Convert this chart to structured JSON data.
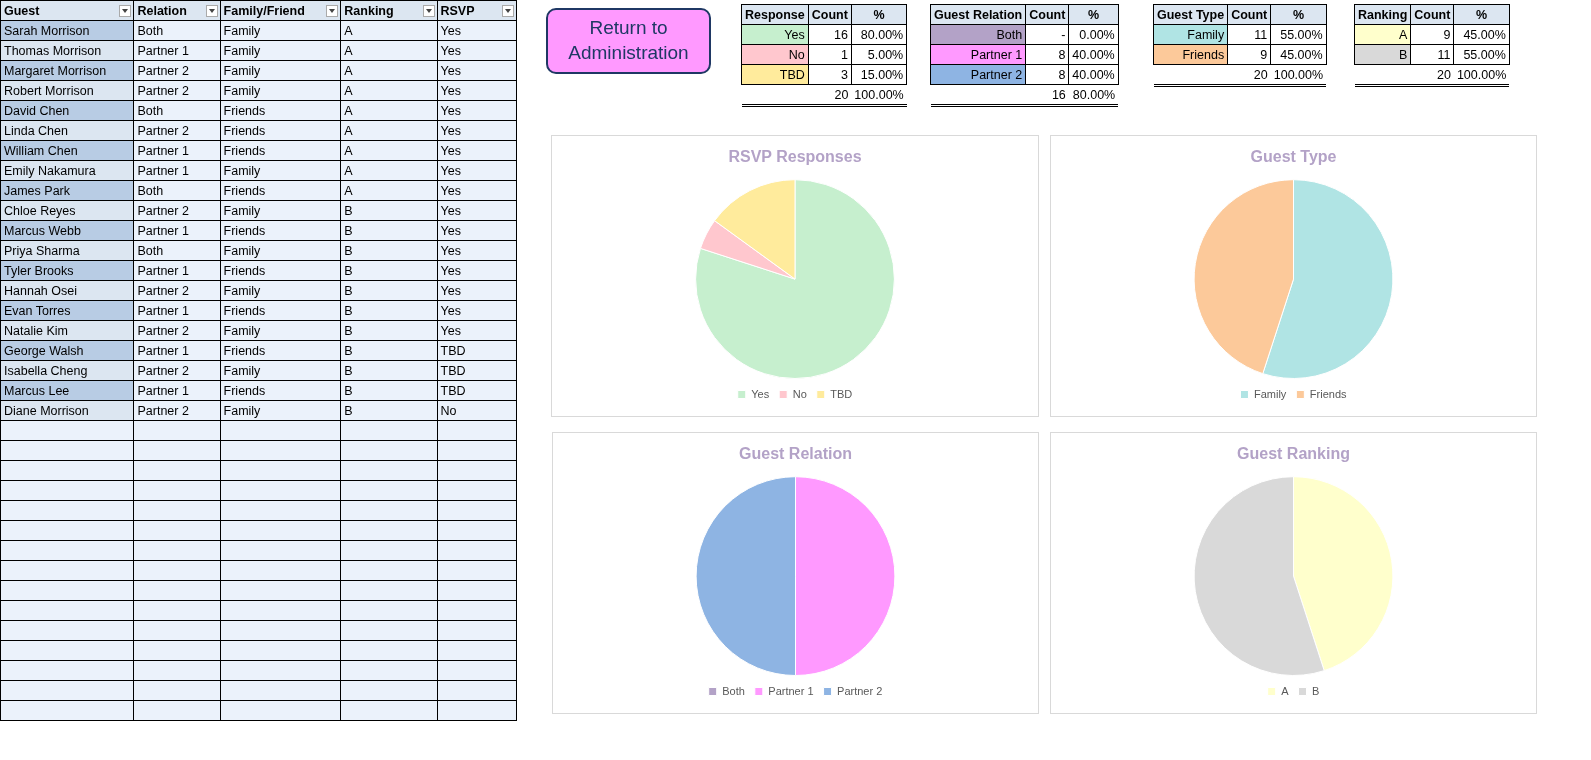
{
  "chart_data": [
    {
      "type": "other",
      "categories": [
        "Guest",
        "Relation",
        "Family/Friend",
        "Ranking",
        "RSVP"
      ],
      "cell_labels": [
        [
          "Sarah Morrison",
          "Both",
          "Family",
          "A",
          "Yes"
        ],
        [
          "Thomas Morrison",
          "Partner 1",
          "Family",
          "A",
          "Yes"
        ],
        [
          "Margaret Morrison",
          "Partner 2",
          "Family",
          "A",
          "Yes"
        ],
        [
          "Robert Morrison",
          "Partner 2",
          "Family",
          "A",
          "Yes"
        ],
        [
          "David Chen",
          "Both",
          "Friends",
          "A",
          "Yes"
        ],
        [
          "Linda Chen",
          "Partner 2",
          "Friends",
          "A",
          "Yes"
        ],
        [
          "William Chen",
          "Partner 1",
          "Friends",
          "A",
          "Yes"
        ],
        [
          "Emily Nakamura",
          "Partner 1",
          "Family",
          "A",
          "Yes"
        ],
        [
          "James Park",
          "Both",
          "Friends",
          "A",
          "Yes"
        ],
        [
          "Chloe Reyes",
          "Partner 2",
          "Family",
          "B",
          "Yes"
        ],
        [
          "Marcus Webb",
          "Partner 1",
          "Friends",
          "B",
          "Yes"
        ],
        [
          "Priya Sharma",
          "Both",
          "Family",
          "B",
          "Yes"
        ],
        [
          "Tyler Brooks",
          "Partner 1",
          "Friends",
          "B",
          "Yes"
        ],
        [
          "Hannah Osei",
          "Partner 2",
          "Family",
          "B",
          "Yes"
        ],
        [
          "Evan Torres",
          "Partner 1",
          "Friends",
          "B",
          "Yes"
        ],
        [
          "Natalie Kim",
          "Partner 2",
          "Family",
          "B",
          "Yes"
        ],
        [
          "George Walsh",
          "Partner 1",
          "Friends",
          "B",
          "TBD"
        ],
        [
          "Isabella Cheng",
          "Partner 2",
          "Family",
          "B",
          "TBD"
        ],
        [
          "Marcus Lee",
          "Partner 1",
          "Friends",
          "B",
          "TBD"
        ],
        [
          "Diane Morrison",
          "Partner 2",
          "Family",
          "B",
          "No"
        ]
      ]
    },
    {
      "type": "other",
      "annotations": [
        "Return to Administration"
      ]
    },
    {
      "type": "other",
      "categories": [
        "Response",
        "Count",
        "%"
      ],
      "cell_labels": [
        [
          "Yes",
          "16",
          "80.00%"
        ],
        [
          "No",
          "1",
          "5.00%"
        ],
        [
          "TBD",
          "3",
          "15.00%"
        ],
        [
          null,
          "20",
          "100.00%"
        ]
      ]
    },
    {
      "type": "other",
      "categories": [
        "Guest Relation",
        "Count",
        "%"
      ],
      "cell_labels": [
        [
          "Both",
          "-",
          "0.00%"
        ],
        [
          "Partner 1",
          "8",
          "40.00%"
        ],
        [
          "Partner 2",
          "8",
          "40.00%"
        ],
        [
          null,
          "16",
          "80.00%"
        ]
      ]
    },
    {
      "type": "other",
      "categories": [
        "Guest Type",
        "Count",
        "%"
      ],
      "cell_labels": [
        [
          "Family",
          "11",
          "55.00%"
        ],
        [
          "Friends",
          "9",
          "45.00%"
        ],
        [
          null,
          "20",
          "100.00%"
        ]
      ]
    },
    {
      "type": "other",
      "categories": [
        "Ranking",
        "Count",
        "%"
      ],
      "cell_labels": [
        [
          "A",
          "9",
          "45.00%"
        ],
        [
          "B",
          "11",
          "55.00%"
        ],
        [
          null,
          "20",
          "100.00%"
        ]
      ]
    },
    {
      "type": "pie",
      "title": "RSVP Responses",
      "categories": [
        "Yes",
        "No",
        "TBD"
      ],
      "values": [
        80,
        5,
        15
      ],
      "colors": [
        "#c6efce",
        "#ffc7ce",
        "#ffeb9c"
      ],
      "legend": "bottom"
    },
    {
      "type": "pie",
      "title": "Guest Type",
      "categories": [
        "Family",
        "Friends"
      ],
      "values": [
        55,
        45
      ],
      "colors": [
        "#b0e4e4",
        "#fcc99a"
      ],
      "legend": "bottom"
    },
    {
      "type": "pie",
      "title": "Guest Relation",
      "categories": [
        "Both",
        "Partner 1",
        "Partner 2"
      ],
      "values": [
        0,
        50,
        50
      ],
      "colors": [
        "#b3a2c7",
        "#ff99ff",
        "#8eb4e3"
      ],
      "legend": "bottom"
    },
    {
      "type": "pie",
      "title": "Guest Ranking",
      "categories": [
        "A",
        "B"
      ],
      "values": [
        45,
        55
      ],
      "colors": [
        "#ffffcc",
        "#d9d9d9"
      ],
      "legend": "bottom"
    }
  ]
}
